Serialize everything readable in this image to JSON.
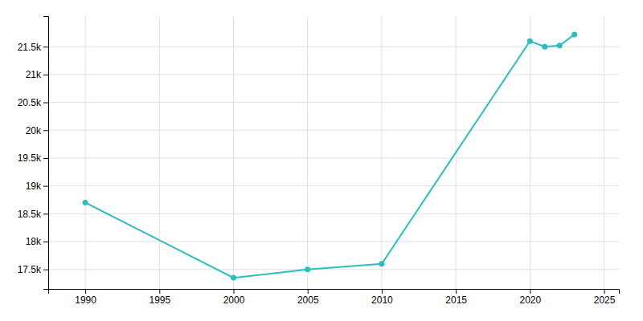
{
  "chart_data": {
    "type": "line",
    "x": [
      1990,
      2000,
      2005,
      2010,
      2020,
      2021,
      2022,
      2023
    ],
    "values": [
      18700,
      17350,
      17500,
      17600,
      21600,
      21500,
      21520,
      21720
    ],
    "color": "#2abfbf",
    "marker": "circle",
    "xlim": [
      1987.5,
      2026
    ],
    "ylim": [
      17150,
      22050
    ],
    "xticks": [
      1990,
      1995,
      2000,
      2005,
      2010,
      2015,
      2020,
      2025
    ],
    "yticks": [
      {
        "value": 17500,
        "label": "17.5k"
      },
      {
        "value": 18000,
        "label": "18k"
      },
      {
        "value": 18500,
        "label": "18.5k"
      },
      {
        "value": 19000,
        "label": "19k"
      },
      {
        "value": 19500,
        "label": "19.5k"
      },
      {
        "value": 20000,
        "label": "20k"
      },
      {
        "value": 20500,
        "label": "20.5k"
      },
      {
        "value": 21000,
        "label": "21k"
      },
      {
        "value": 21500,
        "label": "21.5k"
      }
    ],
    "grid": true
  }
}
